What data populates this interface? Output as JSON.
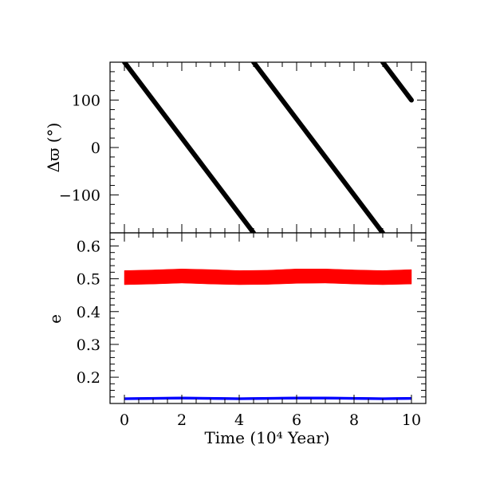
{
  "chart_data": [
    {
      "type": "line",
      "panel": "top",
      "ylabel": "Δϖ (°)",
      "xlim": [
        -0.5,
        10.5
      ],
      "ylim": [
        -180,
        180
      ],
      "yticks_major": [
        -100,
        0,
        100
      ],
      "yticks_labels": [
        "−100",
        "0",
        "100"
      ],
      "ytick_minor_step": 20,
      "grid": false,
      "series": [
        {
          "color": "#000000",
          "segments": [
            {
              "x": [
                0.0,
                4.5
              ],
              "y": [
                180,
                -180
              ]
            },
            {
              "x": [
                4.5,
                9.0
              ],
              "y": [
                180,
                -180
              ]
            },
            {
              "x": [
                9.0,
                10.0
              ],
              "y": [
                180,
                100
              ]
            }
          ]
        }
      ]
    },
    {
      "type": "area",
      "panel": "bottom",
      "xlabel": "Time (10⁴ Year)",
      "ylabel": "e",
      "xlim": [
        -0.5,
        10.5
      ],
      "ylim": [
        0.12,
        0.64
      ],
      "xticks_major": [
        0,
        2,
        4,
        6,
        8,
        10
      ],
      "xticks_labels": [
        "0",
        "2",
        "4",
        "6",
        "8",
        "10"
      ],
      "xtick_minor_step": 0.5,
      "yticks_major": [
        0.2,
        0.3,
        0.4,
        0.5,
        0.6
      ],
      "yticks_labels": [
        "0.2",
        "0.3",
        "0.4",
        "0.5",
        "0.6"
      ],
      "ytick_minor_step": 0.02,
      "grid": false,
      "series": [
        {
          "color": "#ff0000",
          "x": [
            0,
            1,
            2,
            3,
            4,
            5,
            6,
            7,
            8,
            9,
            10
          ],
          "upper": [
            0.525,
            0.527,
            0.53,
            0.528,
            0.525,
            0.526,
            0.53,
            0.53,
            0.527,
            0.525,
            0.528
          ],
          "lower": [
            0.482,
            0.484,
            0.487,
            0.484,
            0.482,
            0.483,
            0.486,
            0.487,
            0.484,
            0.482,
            0.484
          ]
        },
        {
          "color": "#0000ff",
          "x": [
            0,
            1,
            2,
            3,
            4,
            5,
            6,
            7,
            8,
            9,
            10
          ],
          "upper": [
            0.138,
            0.139,
            0.14,
            0.139,
            0.138,
            0.139,
            0.14,
            0.14,
            0.139,
            0.138,
            0.139
          ],
          "lower": [
            0.131,
            0.132,
            0.133,
            0.132,
            0.131,
            0.132,
            0.133,
            0.133,
            0.132,
            0.131,
            0.132
          ]
        }
      ]
    }
  ]
}
